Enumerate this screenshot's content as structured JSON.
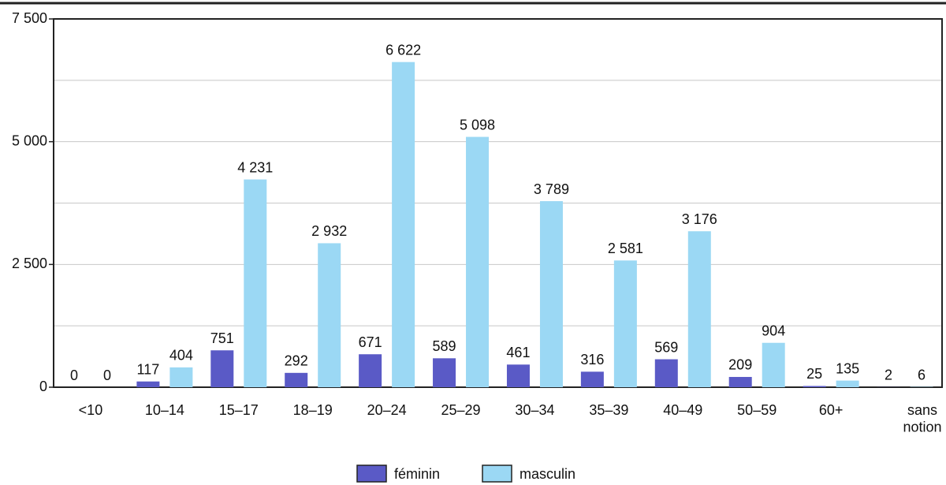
{
  "chart_data": {
    "type": "bar",
    "categories": [
      "<10",
      "10–14",
      "15–17",
      "18–19",
      "20–24",
      "25–29",
      "30–34",
      "35–39",
      "40–49",
      "50–59",
      "60+",
      "sans notion"
    ],
    "series": [
      {
        "name": "féminin",
        "color": "#5a5ac6",
        "values": [
          0,
          117,
          751,
          292,
          671,
          589,
          461,
          316,
          569,
          209,
          25,
          2
        ]
      },
      {
        "name": "masculin",
        "color": "#9bd8f4",
        "values": [
          0,
          404,
          4231,
          2932,
          6622,
          5098,
          3789,
          2581,
          3176,
          904,
          135,
          6
        ],
        "value_labels": [
          "0",
          "404",
          "4 231",
          "2 932",
          "6 622",
          "5 098",
          "3 789",
          "2 581",
          "3 176",
          "904",
          "135",
          "6"
        ]
      }
    ],
    "ylim": [
      0,
      7500
    ],
    "yticks": [
      0,
      {
        "value": 2500,
        "label": "2 500"
      },
      {
        "value": 5000,
        "label": "5 000"
      },
      {
        "value": 7500,
        "label": "7 500"
      }
    ],
    "minor_yticks": [
      1250,
      3750,
      6250
    ],
    "grid": true,
    "legend": "bottom"
  }
}
